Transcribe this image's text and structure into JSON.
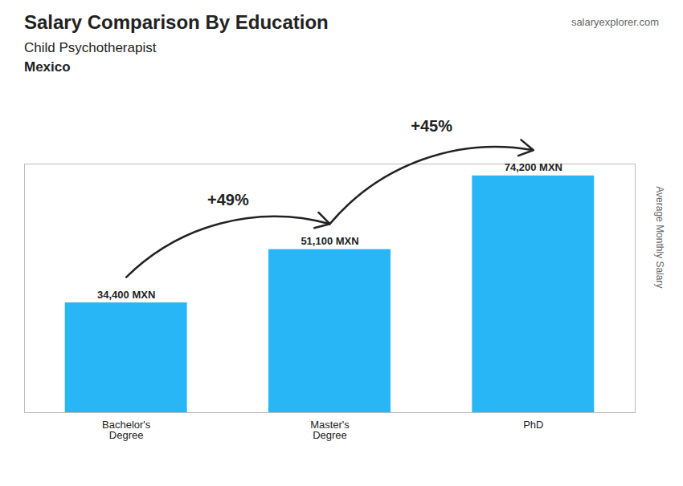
{
  "chart_data": {
    "type": "bar",
    "title": "Salary Comparison By Education",
    "subtitle": "Child Psychotherapist",
    "country": "Mexico",
    "source": "salaryexplorer.com",
    "ylabel": "Average Monthly Salary",
    "categories": [
      "Bachelor's\nDegree",
      "Master's\nDegree",
      "PhD"
    ],
    "values": [
      34400,
      51100,
      74200
    ],
    "value_labels": [
      "34,400 MXN",
      "51,100 MXN",
      "74,200 MXN"
    ],
    "data_labels": true,
    "color": "#29b6f6",
    "annotations": [
      "+49%",
      "+45%"
    ],
    "ylim": [
      0,
      77910
    ],
    "yticks": [],
    "tick_labels": "x",
    "grid": false
  }
}
